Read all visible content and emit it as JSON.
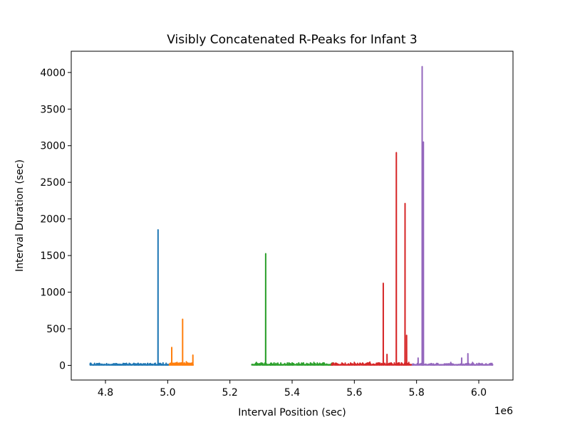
{
  "chart_data": {
    "type": "line",
    "title": "Visibly Concatenated R-Peaks for Infant 3",
    "xlabel": "Interval Position (sec)",
    "ylabel": "Interval Duration (sec)",
    "x_offset_label": "1e6",
    "xlim": [
      4.69,
      6.11
    ],
    "ylim": [
      -200,
      4290
    ],
    "x_ticks": [
      4.8,
      5.0,
      5.2,
      5.4,
      5.6,
      5.8,
      6.0
    ],
    "x_tick_labels": [
      "4.8",
      "5.0",
      "5.2",
      "5.4",
      "5.6",
      "5.8",
      "6.0"
    ],
    "y_ticks": [
      0,
      500,
      1000,
      1500,
      2000,
      2500,
      3000,
      3500,
      4000
    ],
    "y_tick_labels": [
      "0",
      "500",
      "1000",
      "1500",
      "2000",
      "2500",
      "3000",
      "3500",
      "4000"
    ],
    "grid": false,
    "series": [
      {
        "color": "#1f77b4",
        "x_range": [
          4.75,
          5.005
        ],
        "baseline": 5,
        "noise": 12,
        "spikes": [
          [
            4.753,
            30
          ],
          [
            4.833,
            25
          ],
          [
            4.905,
            30
          ],
          [
            4.935,
            25
          ],
          [
            4.96,
            30
          ],
          [
            4.969,
            1850
          ],
          [
            4.985,
            35
          ],
          [
            4.995,
            30
          ]
        ]
      },
      {
        "color": "#ff7f0e",
        "x_range": [
          5.005,
          5.082
        ],
        "baseline": 5,
        "noise": 15,
        "spikes": [
          [
            5.013,
            245
          ],
          [
            5.03,
            40
          ],
          [
            5.048,
            630
          ],
          [
            5.06,
            50
          ],
          [
            5.081,
            140
          ]
        ]
      },
      {
        "color": "#2ca02c",
        "x_range": [
          5.27,
          5.53
        ],
        "baseline": 5,
        "noise": 15,
        "spikes": [
          [
            5.285,
            40
          ],
          [
            5.315,
            1525
          ],
          [
            5.4,
            35
          ],
          [
            5.47,
            40
          ],
          [
            5.5,
            35
          ]
        ]
      },
      {
        "color": "#d62728",
        "x_range": [
          5.525,
          5.785
        ],
        "baseline": 5,
        "noise": 15,
        "spikes": [
          [
            5.6,
            40
          ],
          [
            5.65,
            45
          ],
          [
            5.693,
            1120
          ],
          [
            5.705,
            150
          ],
          [
            5.735,
            2905
          ],
          [
            5.763,
            2210
          ],
          [
            5.768,
            410
          ],
          [
            5.775,
            40
          ]
        ]
      },
      {
        "color": "#9467bd",
        "x_range": [
          5.785,
          6.045
        ],
        "baseline": 5,
        "noise": 12,
        "spikes": [
          [
            5.805,
            100
          ],
          [
            5.818,
            4080
          ],
          [
            5.822,
            3050
          ],
          [
            5.91,
            40
          ],
          [
            5.945,
            100
          ],
          [
            5.965,
            160
          ],
          [
            5.98,
            40
          ]
        ]
      }
    ]
  }
}
